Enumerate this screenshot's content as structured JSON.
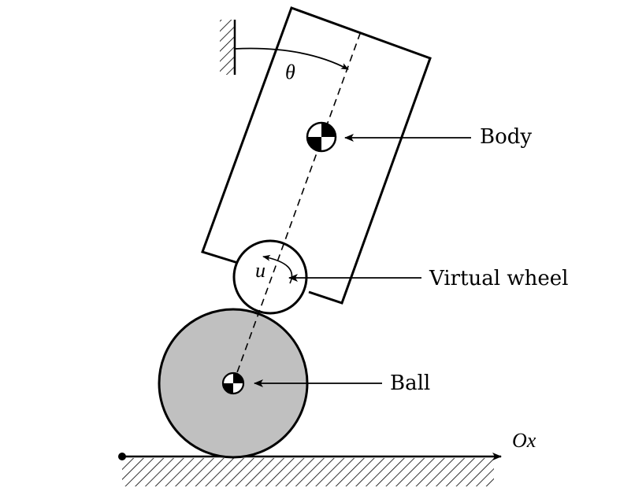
{
  "labels": {
    "theta": "θ",
    "u": "u",
    "body": "Body",
    "virtual_wheel": "Virtual wheel",
    "ball": "Ball",
    "axis": "Ox"
  },
  "colors": {
    "ball_fill": "#c0c0c0",
    "stroke": "#000000",
    "background": "#ffffff"
  }
}
